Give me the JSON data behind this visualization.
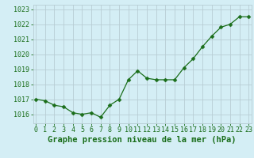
{
  "x": [
    0,
    1,
    2,
    3,
    4,
    5,
    6,
    7,
    8,
    9,
    10,
    11,
    12,
    13,
    14,
    15,
    16,
    17,
    18,
    19,
    20,
    21,
    22,
    23
  ],
  "y": [
    1017.0,
    1016.9,
    1016.6,
    1016.5,
    1016.1,
    1016.0,
    1016.1,
    1015.8,
    1016.6,
    1017.0,
    1018.3,
    1018.9,
    1018.4,
    1018.3,
    1018.3,
    1018.3,
    1019.1,
    1019.7,
    1020.5,
    1021.2,
    1021.8,
    1022.0,
    1022.5,
    1022.5
  ],
  "line_color": "#1a6e1a",
  "marker": "D",
  "marker_size": 2.5,
  "bg_color": "#d4eef5",
  "grid_color": "#b8cdd4",
  "xlabel": "Graphe pression niveau de la mer (hPa)",
  "xlabel_color": "#1a6e1a",
  "xlabel_fontsize": 7.5,
  "tick_color": "#1a6e1a",
  "tick_fontsize": 6.0,
  "ylim": [
    1015.4,
    1023.3
  ],
  "yticks": [
    1016,
    1017,
    1018,
    1019,
    1020,
    1021,
    1022,
    1023
  ],
  "xticks": [
    0,
    1,
    2,
    3,
    4,
    5,
    6,
    7,
    8,
    9,
    10,
    11,
    12,
    13,
    14,
    15,
    16,
    17,
    18,
    19,
    20,
    21,
    22,
    23
  ],
  "xlim": [
    -0.3,
    23.3
  ]
}
